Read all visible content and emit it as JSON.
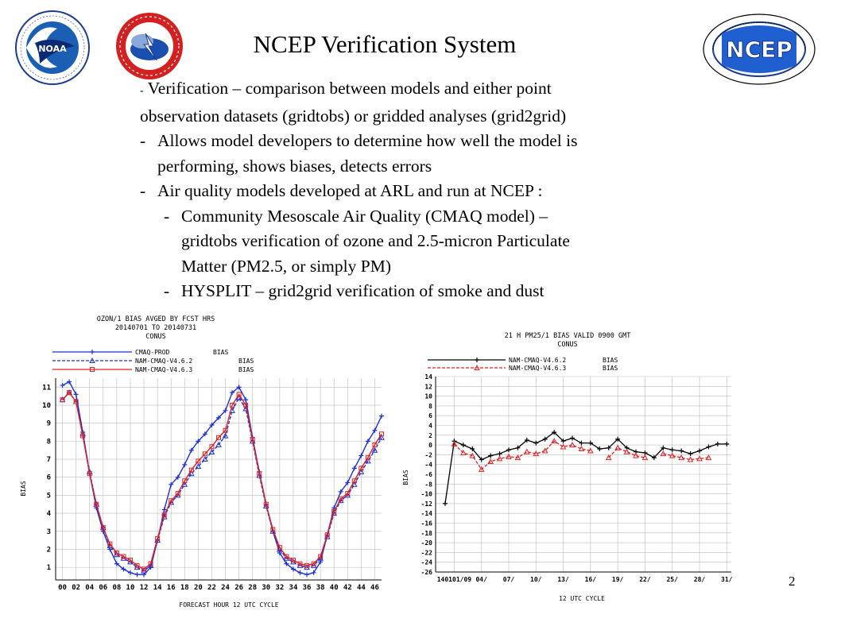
{
  "slide": {
    "title": "NCEP Verification  System",
    "page_number": "2",
    "bullets": [
      {
        "level": 0,
        "dash": "-",
        "text": " Verification – comparison between models and either point"
      },
      {
        "level": 0,
        "dash": "",
        "text": "observation datasets  (gridtobs) or gridded analyses (grid2grid)"
      },
      {
        "level": 1,
        "dash": "-",
        "text": "Allows model developers to determine how well the model is"
      },
      {
        "level": 1,
        "dash": "",
        "text": "performing, shows biases, detects errors"
      },
      {
        "level": 1,
        "dash": "-",
        "text": "Air quality models developed at ARL and run at NCEP :"
      },
      {
        "level": 2,
        "dash": "-",
        "text": "Community Mesoscale Air Quality (CMAQ model) –"
      },
      {
        "level": 2,
        "dash": "",
        "text": "gridtobs verification of ozone and 2.5-micron  Particulate"
      },
      {
        "level": 2,
        "dash": "",
        "text": "Matter (PM2.5, or  simply PM)"
      },
      {
        "level": 2,
        "dash": "-",
        "text": "HYSPLIT – grid2grid verification of smoke and dust"
      }
    ],
    "logos": {
      "noaa": {
        "name": "noaa-logo",
        "text": "NOAA"
      },
      "nws": {
        "name": "national-weather-service-logo"
      },
      "ncep": {
        "name": "ncep-logo",
        "text": "NCEP"
      }
    }
  },
  "chart_data": [
    {
      "type": "line",
      "title_lines": [
        "OZON/1 BIAS  AVGED BY FCST HRS",
        "20140701 TO 20140731",
        "CONUS"
      ],
      "xlabel": "FORECAST HOUR  12 UTC CYCLE",
      "ylabel": "BIAS",
      "xlim": [
        -1,
        47
      ],
      "ylim": [
        0.3,
        11.5
      ],
      "x_ticks": [
        0,
        2,
        4,
        6,
        8,
        10,
        12,
        14,
        16,
        18,
        20,
        22,
        24,
        26,
        28,
        30,
        32,
        34,
        36,
        38,
        40,
        42,
        44,
        46
      ],
      "x_tick_labels": [
        "00",
        "02",
        "04",
        "06",
        "08",
        "10",
        "12",
        "14",
        "16",
        "18",
        "20",
        "22",
        "24",
        "26",
        "28",
        "30",
        "32",
        "34",
        "36",
        "38",
        "40",
        "42",
        "44",
        "46"
      ],
      "y_ticks": [
        1,
        2,
        3,
        4,
        5,
        6,
        7,
        8,
        9,
        10,
        11
      ],
      "grid": true,
      "legend_position": "top-left",
      "x": [
        0,
        1,
        2,
        3,
        4,
        5,
        6,
        7,
        8,
        9,
        10,
        11,
        12,
        13,
        14,
        15,
        16,
        17,
        18,
        19,
        20,
        21,
        22,
        23,
        24,
        25,
        26,
        27,
        28,
        29,
        30,
        31,
        32,
        33,
        34,
        35,
        36,
        37,
        38,
        39,
        40,
        41,
        42,
        43,
        44,
        45,
        46,
        47
      ],
      "series": [
        {
          "name": "CMAQ-PROD",
          "tag": "BIAS",
          "color": "#1a2fd6",
          "dash": "solid",
          "marker": "plus",
          "values": [
            11.1,
            11.3,
            10.6,
            8.5,
            6.2,
            4.3,
            3.0,
            2.0,
            1.2,
            0.9,
            0.7,
            0.6,
            0.6,
            1.0,
            2.5,
            4.2,
            5.6,
            6.0,
            6.7,
            7.5,
            8.0,
            8.4,
            8.9,
            9.3,
            9.7,
            10.7,
            11.0,
            10.3,
            8.2,
            6.3,
            4.5,
            3.0,
            1.8,
            1.2,
            0.9,
            0.7,
            0.6,
            0.7,
            1.3,
            2.8,
            4.3,
            5.2,
            5.7,
            6.5,
            7.2,
            8.0,
            8.6,
            9.4
          ]
        },
        {
          "name": "NAM-CMAQ-V4.6.2",
          "tag": "BIAS",
          "color": "#1a2fd6",
          "dash": "dashed",
          "marker": "triangle",
          "values": [
            10.3,
            10.7,
            10.2,
            8.4,
            6.3,
            4.5,
            3.2,
            2.2,
            1.7,
            1.5,
            1.3,
            1.0,
            0.8,
            1.1,
            2.5,
            3.8,
            4.6,
            5.0,
            5.6,
            6.2,
            6.6,
            7.0,
            7.4,
            7.8,
            8.3,
            9.7,
            10.4,
            9.8,
            8.0,
            6.1,
            4.4,
            3.0,
            2.0,
            1.5,
            1.3,
            1.1,
            1.0,
            1.1,
            1.5,
            2.7,
            4.0,
            4.7,
            5.0,
            5.6,
            6.3,
            6.9,
            7.5,
            8.2
          ]
        },
        {
          "name": "NAM-CMAQ-V4.6.3",
          "tag": "BIAS",
          "color": "#e02020",
          "dash": "solid",
          "marker": "square",
          "values": [
            10.3,
            10.7,
            10.2,
            8.3,
            6.2,
            4.5,
            3.2,
            2.3,
            1.8,
            1.6,
            1.4,
            1.1,
            0.9,
            1.2,
            2.6,
            3.9,
            4.7,
            5.1,
            5.8,
            6.4,
            6.9,
            7.3,
            7.7,
            8.2,
            8.6,
            10.0,
            10.6,
            10.0,
            8.1,
            6.2,
            4.5,
            3.1,
            2.1,
            1.6,
            1.4,
            1.2,
            1.1,
            1.2,
            1.6,
            2.8,
            4.1,
            4.8,
            5.1,
            5.8,
            6.5,
            7.1,
            7.8,
            8.4
          ]
        }
      ]
    },
    {
      "type": "line",
      "title_lines": [
        "21 H  PM25/1 BIAS VALID 0900 GMT",
        "CONUS"
      ],
      "xlabel": "12 UTC CYCLE",
      "ylabel": "BIAS",
      "xlim": [
        1,
        31.5
      ],
      "ylim": [
        -26,
        14
      ],
      "x_tick_positions": [
        1,
        4,
        7,
        10,
        13,
        16,
        19,
        22,
        25,
        28,
        31
      ],
      "x_tick_labels": [
        "140101/09",
        "04/",
        "07/",
        "10/",
        "13/",
        "16/",
        "19/",
        "22/",
        "25/",
        "28/",
        "31/"
      ],
      "y_ticks": [
        14,
        12,
        10,
        8,
        6,
        4,
        2,
        0,
        -2,
        -4,
        -6,
        -8,
        -10,
        -12,
        -14,
        -16,
        -18,
        -20,
        -22,
        -24,
        -26
      ],
      "grid": true,
      "legend_position": "top-left",
      "series": [
        {
          "name": "NAM-CMAQ-V4.6.2",
          "tag": "BIAS",
          "color": "#000000",
          "dash": "solid",
          "marker": "plus",
          "x": [
            0,
            1,
            2,
            3,
            4,
            5,
            6,
            7,
            8,
            9,
            10,
            11,
            12,
            13,
            14,
            15,
            16,
            17,
            18,
            19,
            20,
            21,
            22,
            23,
            24,
            25,
            26,
            27,
            28,
            29,
            30,
            31
          ],
          "values": [
            -12,
            0.8,
            0,
            -0.8,
            -3,
            -2.2,
            -1.8,
            -1,
            -0.6,
            1,
            0.4,
            1.2,
            2.6,
            0.8,
            1.4,
            0.4,
            0.4,
            -0.8,
            -0.6,
            1.2,
            -0.6,
            -1.4,
            -1.6,
            -2.6,
            -0.6,
            -1,
            -1.2,
            -1.8,
            -1.2,
            -0.4,
            0.2,
            0.2
          ]
        },
        {
          "name": "NAM-CMAQ-V4.6.3",
          "tag": "BIAS",
          "color": "#e02020",
          "dash": "dashed",
          "marker": "triangle",
          "x": [
            1,
            2,
            3,
            4,
            5,
            6,
            7,
            8,
            9,
            10,
            11,
            12,
            13,
            14,
            15,
            16,
            17,
            18,
            19,
            20,
            21,
            22,
            23,
            24,
            25,
            26,
            27,
            28,
            29,
            30
          ],
          "values": [
            0.2,
            -1.6,
            -2.2,
            -5,
            -3.4,
            -2.8,
            -2.4,
            -2.6,
            -1.4,
            -1.8,
            -1.2,
            0.8,
            -0.4,
            0,
            -0.8,
            -1.2,
            null,
            -2.6,
            -0.6,
            -1.4,
            -2.2,
            -2.6,
            null,
            -1.8,
            -2.2,
            -2.6,
            -3,
            -2.8,
            -2.6,
            null
          ]
        }
      ]
    }
  ]
}
